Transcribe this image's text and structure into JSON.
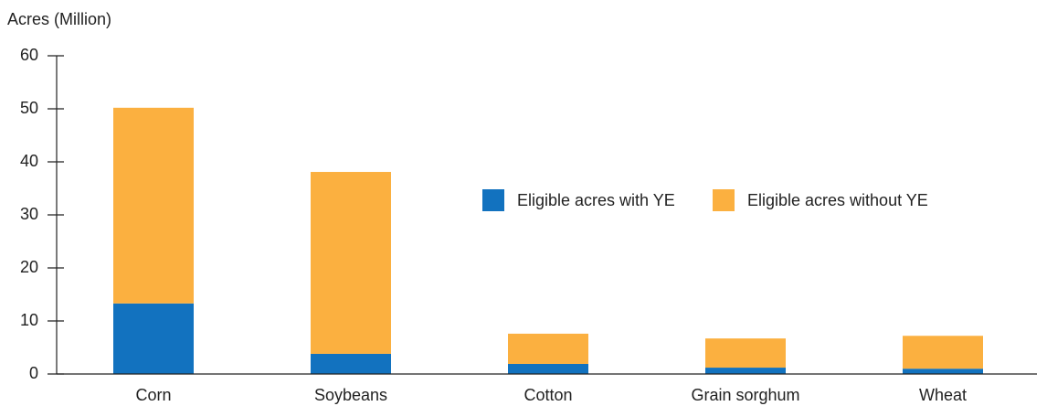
{
  "chart_data": {
    "type": "stacked_bar",
    "y_label": "Acres (Million)",
    "categories": [
      "Corn",
      "Soybeans",
      "Cotton",
      "Grain sorghum",
      "Wheat"
    ],
    "series": [
      {
        "name": "Eligible acres with YE",
        "color": "#1272bf",
        "values": [
          13.3,
          3.8,
          1.9,
          1.2,
          1.0
        ]
      },
      {
        "name": "Eligible acres without YE",
        "color": "#fbb040",
        "values": [
          36.9,
          34.3,
          5.7,
          5.5,
          6.2
        ]
      }
    ],
    "ylim": [
      0,
      60
    ],
    "yticks": [
      0,
      10,
      20,
      30,
      40,
      50,
      60
    ],
    "legend": "upper right"
  }
}
